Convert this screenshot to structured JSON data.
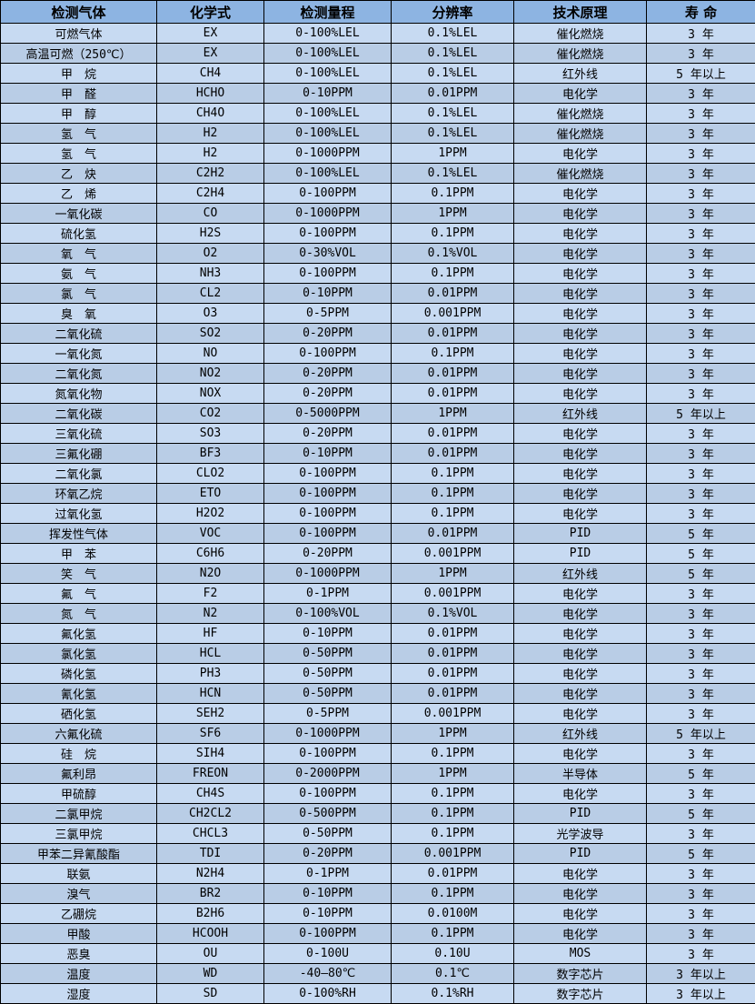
{
  "colors": {
    "header_bg": "#8DB4E2",
    "row_odd_bg": "#C7DAF2",
    "row_even_bg": "#B9CDE6",
    "border": "#000000",
    "text": "#000000"
  },
  "table": {
    "columns": [
      "检测气体",
      "化学式",
      "检测量程",
      "分辨率",
      "技术原理",
      "寿 命"
    ],
    "rows": [
      [
        "可燃气体",
        "EX",
        "0-100%LEL",
        "0.1%LEL",
        "催化燃烧",
        "3 年"
      ],
      [
        "高温可燃（250℃）",
        "EX",
        "0-100%LEL",
        "0.1%LEL",
        "催化燃烧",
        "3 年"
      ],
      [
        "甲　烷",
        "CH4",
        "0-100%LEL",
        "0.1%LEL",
        "红外线",
        "5 年以上"
      ],
      [
        "甲　醛",
        "HCHO",
        "0-10PPM",
        "0.01PPM",
        "电化学",
        "3 年"
      ],
      [
        "甲　醇",
        "CH4O",
        "0-100%LEL",
        "0.1%LEL",
        "催化燃烧",
        "3 年"
      ],
      [
        "氢　气",
        "H2",
        "0-100%LEL",
        "0.1%LEL",
        "催化燃烧",
        "3 年"
      ],
      [
        "氢　气",
        "H2",
        "0-1000PPM",
        "1PPM",
        "电化学",
        "3 年"
      ],
      [
        "乙　炔",
        "C2H2",
        "0-100%LEL",
        "0.1%LEL",
        "催化燃烧",
        "3 年"
      ],
      [
        "乙　烯",
        "C2H4",
        "0-100PPM",
        "0.1PPM",
        "电化学",
        "3 年"
      ],
      [
        "一氧化碳",
        "CO",
        "0-1000PPM",
        "1PPM",
        "电化学",
        "3 年"
      ],
      [
        "硫化氢",
        "H2S",
        "0-100PPM",
        "0.1PPM",
        "电化学",
        "3 年"
      ],
      [
        "氧　气",
        "O2",
        "0-30%VOL",
        "0.1%VOL",
        "电化学",
        "3 年"
      ],
      [
        "氨　气",
        "NH3",
        "0-100PPM",
        "0.1PPM",
        "电化学",
        "3 年"
      ],
      [
        "氯　气",
        "CL2",
        "0-10PPM",
        "0.01PPM",
        "电化学",
        "3 年"
      ],
      [
        "臭　氧",
        "O3",
        "0-5PPM",
        "0.001PPM",
        "电化学",
        "3 年"
      ],
      [
        "二氧化硫",
        "SO2",
        "0-20PPM",
        "0.01PPM",
        "电化学",
        "3 年"
      ],
      [
        "一氧化氮",
        "NO",
        "0-100PPM",
        "0.1PPM",
        "电化学",
        "3 年"
      ],
      [
        "二氧化氮",
        "NO2",
        "0-20PPM",
        "0.01PPM",
        "电化学",
        "3 年"
      ],
      [
        "氮氧化物",
        "NOX",
        "0-20PPM",
        "0.01PPM",
        "电化学",
        "3 年"
      ],
      [
        "二氧化碳",
        "CO2",
        "0-5000PPM",
        "1PPM",
        "红外线",
        "5 年以上"
      ],
      [
        "三氧化硫",
        "SO3",
        "0-20PPM",
        "0.01PPM",
        "电化学",
        "3 年"
      ],
      [
        "三氟化硼",
        "BF3",
        "0-10PPM",
        "0.01PPM",
        "电化学",
        "3 年"
      ],
      [
        "二氧化氯",
        "CLO2",
        "0-100PPM",
        "0.1PPM",
        "电化学",
        "3 年"
      ],
      [
        "环氧乙烷",
        "ETO",
        "0-100PPM",
        "0.1PPM",
        "电化学",
        "3 年"
      ],
      [
        "过氧化氢",
        "H2O2",
        "0-100PPM",
        "0.1PPM",
        "电化学",
        "3 年"
      ],
      [
        "挥发性气体",
        "VOC",
        "0-100PPM",
        "0.01PPM",
        "PID",
        "5 年"
      ],
      [
        "甲　苯",
        "C6H6",
        "0-20PPM",
        "0.001PPM",
        "PID",
        "5 年"
      ],
      [
        "笑　气",
        "N2O",
        "0-1000PPM",
        "1PPM",
        "红外线",
        "5 年"
      ],
      [
        "氟　气",
        "F2",
        "0-1PPM",
        "0.001PPM",
        "电化学",
        "3 年"
      ],
      [
        "氮　气",
        "N2",
        "0-100%VOL",
        "0.1%VOL",
        "电化学",
        "3 年"
      ],
      [
        "氟化氢",
        "HF",
        "0-10PPM",
        "0.01PPM",
        "电化学",
        "3 年"
      ],
      [
        "氯化氢",
        "HCL",
        "0-50PPM",
        "0.01PPM",
        "电化学",
        "3 年"
      ],
      [
        "磷化氢",
        "PH3",
        "0-50PPM",
        "0.01PPM",
        "电化学",
        "3 年"
      ],
      [
        "氰化氢",
        "HCN",
        "0-50PPM",
        "0.01PPM",
        "电化学",
        "3 年"
      ],
      [
        "硒化氢",
        "SEH2",
        "0-5PPM",
        "0.001PPM",
        "电化学",
        "3 年"
      ],
      [
        "六氟化硫",
        "SF6",
        "0-1000PPM",
        "1PPM",
        "红外线",
        "5 年以上"
      ],
      [
        "硅　烷",
        "SIH4",
        "0-100PPM",
        "0.1PPM",
        "电化学",
        "3 年"
      ],
      [
        "氟利昂",
        "FREON",
        "0-2000PPM",
        "1PPM",
        "半导体",
        "5 年"
      ],
      [
        "甲硫醇",
        "CH4S",
        "0-100PPM",
        "0.1PPM",
        "电化学",
        "3 年"
      ],
      [
        "二氯甲烷",
        "CH2CL2",
        "0-500PPM",
        "0.1PPM",
        "PID",
        "5 年"
      ],
      [
        "三氯甲烷",
        "CHCL3",
        "0-50PPM",
        "0.1PPM",
        "光学波导",
        "3 年"
      ],
      [
        "甲苯二异氰酸酯",
        "TDI",
        "0-20PPM",
        "0.001PPM",
        "PID",
        "5 年"
      ],
      [
        "联氨",
        "N2H4",
        "0-1PPM",
        "0.01PPM",
        "电化学",
        "3 年"
      ],
      [
        "溴气",
        "BR2",
        "0-10PPM",
        "0.1PPM",
        "电化学",
        "3 年"
      ],
      [
        "乙硼烷",
        "B2H6",
        "0-10PPM",
        "0.0100M",
        "电化学",
        "3 年"
      ],
      [
        "甲酸",
        "HCOOH",
        "0-100PPM",
        "0.1PPM",
        "电化学",
        "3 年"
      ],
      [
        "恶臭",
        "OU",
        "0-100U",
        "0.10U",
        "MOS",
        "3 年"
      ],
      [
        "温度",
        "WD",
        "-40—80℃",
        "0.1℃",
        "数字芯片",
        "3 年以上"
      ],
      [
        "湿度",
        "SD",
        "0-100%RH",
        "0.1%RH",
        "数字芯片",
        "3 年以上"
      ]
    ]
  }
}
